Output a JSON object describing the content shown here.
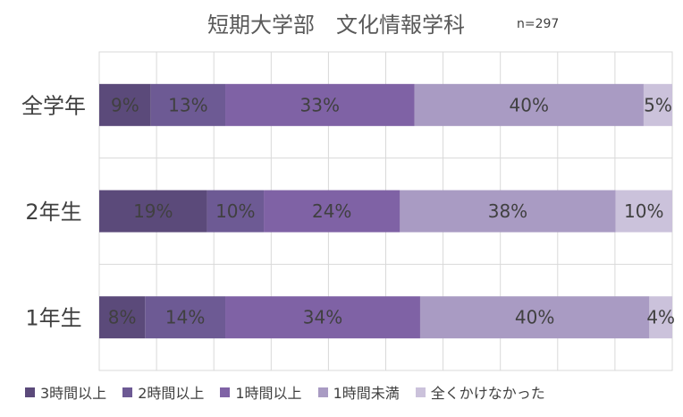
{
  "chart_data": {
    "type": "bar",
    "orientation": "horizontal",
    "stacked": "percent",
    "title": "短期大学部　文化情報学科",
    "subtitle": "n=297",
    "categories": [
      "全学年",
      "2年生",
      "1年生"
    ],
    "series": [
      {
        "name": "3時間以上",
        "color": "#5b4a7a",
        "values": [
          9,
          19,
          8
        ],
        "labels": [
          "9%",
          "19%",
          "8%"
        ]
      },
      {
        "name": "2時間以上",
        "color": "#6d5a94",
        "values": [
          13,
          10,
          14
        ],
        "labels": [
          "13%",
          "10%",
          "14%"
        ]
      },
      {
        "name": "1時間以上",
        "color": "#7f62a5",
        "values": [
          33,
          24,
          34
        ],
        "labels": [
          "33%",
          "24%",
          "34%"
        ]
      },
      {
        "name": "1時間未満",
        "color": "#a99bc3",
        "values": [
          40,
          38,
          40
        ],
        "labels": [
          "40%",
          "38%",
          "40%"
        ]
      },
      {
        "name": "全くかけなかった",
        "color": "#cbc2db",
        "values": [
          5,
          10,
          4
        ],
        "labels": [
          "5%",
          "10%",
          "4%"
        ]
      }
    ],
    "xlim": [
      0,
      100
    ],
    "grid": true,
    "legend_position": "bottom"
  }
}
